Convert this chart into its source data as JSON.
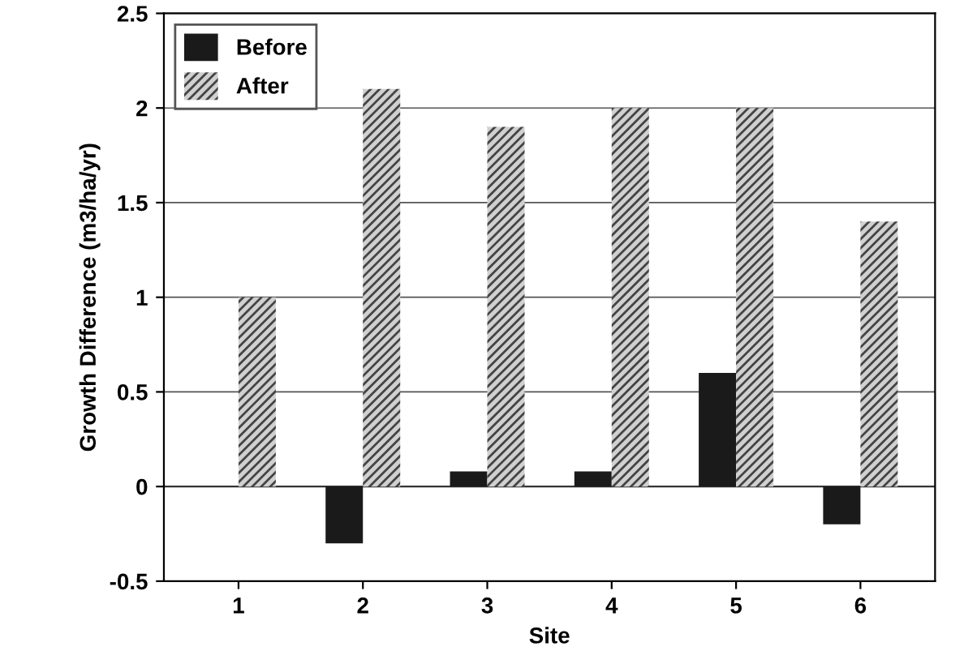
{
  "chart_data": {
    "type": "bar",
    "xlabel": "Site",
    "ylabel": "Growth Difference (m3/ha/yr)",
    "categories": [
      "1",
      "2",
      "3",
      "4",
      "5",
      "6"
    ],
    "series": [
      {
        "name": "Before",
        "color": "#1a1a1a",
        "values": [
          null,
          -0.3,
          0.08,
          0.08,
          0.6,
          -0.2
        ]
      },
      {
        "name": "After",
        "color": "#d0d0d0",
        "values": [
          1.0,
          2.1,
          1.9,
          2.0,
          2.0,
          1.4
        ]
      }
    ],
    "ylim": [
      -0.5,
      2.5
    ],
    "yticks": [
      -0.5,
      0,
      0.5,
      1,
      1.5,
      2,
      2.5
    ],
    "grid": "y",
    "legend": "top left"
  }
}
